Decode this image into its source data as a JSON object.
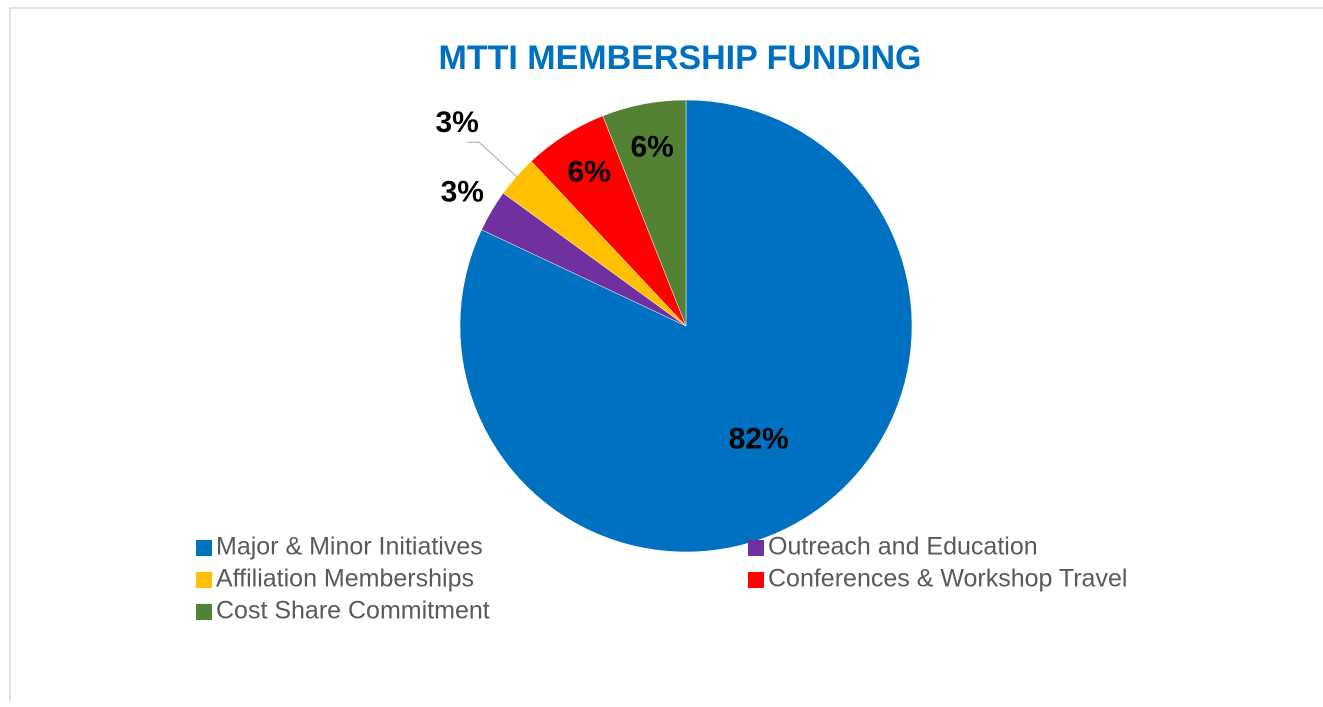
{
  "chart_data": {
    "type": "pie",
    "title": "MTTI MEMBERSHIP FUNDING",
    "categories": [
      "Major & Minor Initiatives",
      "Outreach and Education",
      "Affiliation Memberships",
      "Conferences & Workshop Travel",
      "Cost Share Commitment"
    ],
    "values": [
      82,
      3,
      3,
      6,
      6
    ],
    "value_labels": [
      "82%",
      "3%",
      "3%",
      "6%",
      "6%"
    ],
    "colors": [
      "#0070c0",
      "#7030a0",
      "#ffc000",
      "#ff0000",
      "#548235"
    ],
    "legend": "bottom"
  }
}
